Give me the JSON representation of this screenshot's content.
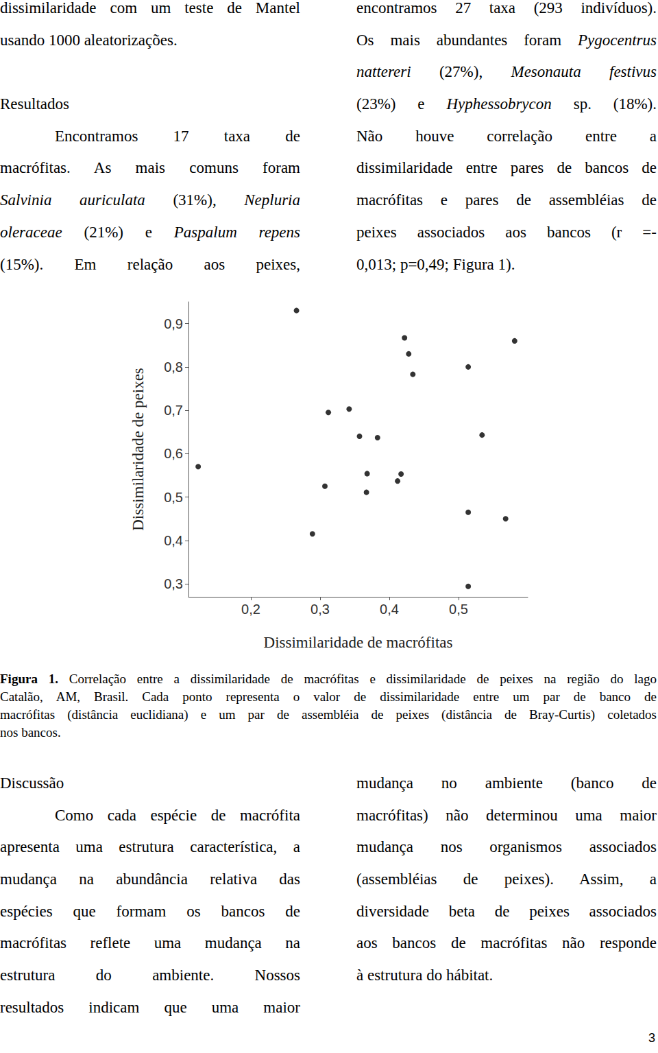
{
  "chart_data": {
    "type": "scatter",
    "xlabel": "Dissimilaridade de macrófitas",
    "ylabel": "Dissimilaridade de peixes",
    "x": [
      0.124,
      0.266,
      0.289,
      0.307,
      0.312,
      0.342,
      0.357,
      0.383,
      0.368,
      0.367,
      0.412,
      0.417,
      0.422,
      0.428,
      0.434,
      0.514,
      0.514,
      0.514,
      0.534,
      0.568,
      0.581
    ],
    "values": [
      0.57,
      0.93,
      0.415,
      0.525,
      0.695,
      0.703,
      0.64,
      0.637,
      0.554,
      0.511,
      0.537,
      0.553,
      0.867,
      0.83,
      0.783,
      0.8,
      0.465,
      0.294,
      0.643,
      0.45,
      0.86
    ],
    "color": "#000000",
    "marker": "circle",
    "grid": false,
    "xlim": [
      0.11,
      0.6
    ],
    "xticks": [
      {
        "value": 0.2,
        "label": "0,2"
      },
      {
        "value": 0.3,
        "label": "0,3"
      },
      {
        "value": 0.4,
        "label": "0,4"
      },
      {
        "value": 0.5,
        "label": "0,5"
      }
    ],
    "ylim": [
      0.27,
      0.95
    ],
    "yticks": [
      {
        "value": 0.3,
        "label": "0,3"
      },
      {
        "value": 0.4,
        "label": "0,4"
      },
      {
        "value": 0.5,
        "label": "0,5"
      },
      {
        "value": 0.6,
        "label": "0,6"
      },
      {
        "value": 0.7,
        "label": "0,7"
      },
      {
        "value": 0.8,
        "label": "0,8"
      },
      {
        "value": 0.9,
        "label": "0,9"
      }
    ]
  },
  "top": {
    "left": [
      {
        "lines": [
          [
            "dissimilaridade com um teste de Mantel"
          ]
        ],
        "end": [
          "usando 1000 aleatorizações."
        ]
      },
      {
        "heading": "Resultados"
      },
      {
        "lines": [
          [
            "Encontramos 17 taxa de"
          ],
          [
            "macrófitas. As mais comuns foram"
          ],
          [
            {
              "italic": "Salvinia auriculata"
            },
            " (31%), ",
            {
              "italic": "Nepluria"
            }
          ],
          [
            {
              "italic": "oleraceae"
            },
            " (21%) e ",
            {
              "italic": "Paspalum repens"
            }
          ],
          [
            "(15%). Em relação aos peixes,"
          ]
        ]
      }
    ],
    "right": [
      {
        "lines": [
          [
            "encontramos 27 taxa (293 indivíduos)."
          ],
          [
            "Os mais abundantes foram ",
            {
              "italic": "Pygocentrus"
            }
          ],
          [
            {
              "italic": "nattereri"
            },
            " (27%), ",
            {
              "italic": "Mesonauta festivus"
            }
          ],
          [
            "(23%) e ",
            {
              "italic": "Hyphessobrycon"
            },
            " sp. (18%)."
          ],
          [
            "Não houve correlação entre a"
          ],
          [
            "dissimilaridade entre pares de bancos de"
          ],
          [
            "macrófitas e pares de assembléias de"
          ],
          [
            "peixes associados aos bancos (r =-"
          ]
        ],
        "end": [
          "0,013; p=0,49; Figura 1)."
        ]
      }
    ]
  },
  "caption": {
    "lines": [
      [
        {
          "bold": "Figura 1."
        },
        " Correlação entre a dissimilaridade de macrófitas e dissimilaridade de peixes na região do lago"
      ],
      [
        "Catalão, AM, Brasil. Cada ponto representa o valor de dissimilaridade entre um par de banco de"
      ],
      [
        "macrófitas (distância euclidiana) e um par de assembléia de peixes (distância de Bray-Curtis) coletados"
      ]
    ],
    "end": [
      "nos bancos."
    ]
  },
  "discussion": {
    "left": [
      {
        "heading": "Discussão"
      },
      {
        "lines": [
          [
            "Como cada espécie de macrófita"
          ],
          [
            "apresenta uma estrutura característica, a"
          ],
          [
            "mudança na abundância relativa das"
          ],
          [
            "espécies que formam os bancos de"
          ],
          [
            "macrófitas reflete uma mudança na"
          ],
          [
            "estrutura do ambiente. Nossos"
          ],
          [
            "resultados indicam que uma maior"
          ]
        ]
      }
    ],
    "right": [
      {
        "lines": [
          [
            "mudança no ambiente (banco de"
          ],
          [
            "macrófitas) não determinou uma maior"
          ],
          [
            "mudança nos organismos associados"
          ],
          [
            "(assembléias de peixes). Assim, a"
          ],
          [
            "diversidade beta de peixes associados"
          ],
          [
            "aos bancos de macrófitas não responde"
          ]
        ],
        "end": [
          "à estrutura do hábitat."
        ]
      }
    ]
  },
  "page_number": "3"
}
